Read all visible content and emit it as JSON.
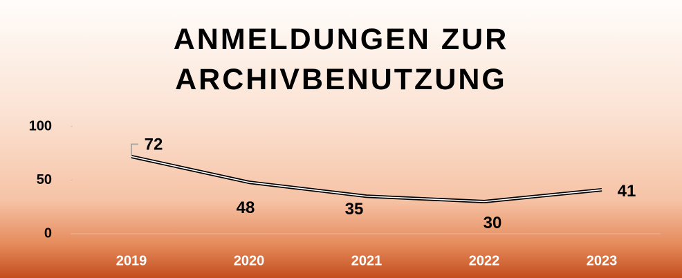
{
  "chart_data": {
    "type": "line",
    "title": "ANMELDUNGEN ZUR ARCHIVBENUTZUNG",
    "categories": [
      "2019",
      "2020",
      "2021",
      "2022",
      "2023"
    ],
    "values": [
      72,
      48,
      35,
      30,
      41
    ],
    "color": "#000000",
    "ylim": [
      0,
      100
    ],
    "yticks": [
      0,
      50,
      100
    ]
  }
}
